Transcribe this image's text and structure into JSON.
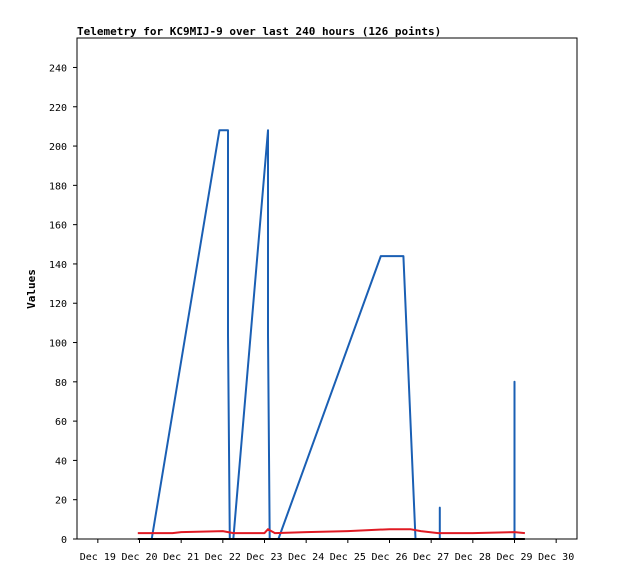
{
  "chart_data": {
    "type": "line",
    "title": "Telemetry for KC9MIJ-9 over last 240 hours (126 points)",
    "xlabel": "",
    "ylabel": "Values",
    "x_ticks": [
      "Dec 19",
      "Dec 20",
      "Dec 21",
      "Dec 22",
      "Dec 23",
      "Dec 24",
      "Dec 25",
      "Dec 26",
      "Dec 27",
      "Dec 28",
      "Dec 29",
      "Dec 30"
    ],
    "xlim": [
      "Dec 19",
      "Dec 30"
    ],
    "y_ticks": [
      0,
      20,
      40,
      60,
      80,
      100,
      120,
      140,
      160,
      180,
      200,
      220,
      240
    ],
    "ylim": [
      0,
      255
    ],
    "grid": false,
    "legend": "none",
    "series": [
      {
        "color": "#1a5fb4",
        "points": [
          [
            "Dec 20 07:00",
            0
          ],
          [
            "Dec 21 22:00",
            208
          ],
          [
            "Dec 22 03:00",
            208
          ],
          [
            "Dec 22 03:00",
            104
          ],
          [
            "Dec 22 04:00",
            0
          ],
          [
            "Dec 22 06:00",
            0
          ],
          [
            "Dec 23 02:00",
            208
          ],
          [
            "Dec 23 02:00",
            104
          ],
          [
            "Dec 23 03:00",
            0
          ],
          [
            "Dec 23 08:00",
            0
          ],
          [
            "Dec 25 19:00",
            144
          ],
          [
            "Dec 26 08:00",
            144
          ],
          [
            "Dec 26 15:00",
            0
          ],
          [
            "Dec 27 05:00",
            0
          ],
          [
            "Dec 27 05:00",
            16
          ],
          [
            "Dec 27 05:00",
            0
          ],
          [
            "Dec 29 00:00",
            0
          ],
          [
            "Dec 29 00:00",
            80
          ],
          [
            "Dec 29 00:00",
            0
          ]
        ]
      },
      {
        "color": "#e01b24",
        "points": [
          [
            "Dec 19 23:00",
            3
          ],
          [
            "Dec 20 19:00",
            3
          ],
          [
            "Dec 21 00:00",
            3.5
          ],
          [
            "Dec 22 00:00",
            4
          ],
          [
            "Dec 22 06:00",
            3
          ],
          [
            "Dec 23 00:00",
            3
          ],
          [
            "Dec 23 02:00",
            5
          ],
          [
            "Dec 23 06:00",
            3
          ],
          [
            "Dec 24 00:00",
            3.5
          ],
          [
            "Dec 25 00:00",
            4
          ],
          [
            "Dec 26 00:00",
            5
          ],
          [
            "Dec 26 12:00",
            5
          ],
          [
            "Dec 26 18:00",
            4
          ],
          [
            "Dec 27 04:00",
            3
          ],
          [
            "Dec 28 00:00",
            3
          ],
          [
            "Dec 29 00:00",
            3.5
          ],
          [
            "Dec 29 06:00",
            3
          ]
        ]
      },
      {
        "color": "#000000",
        "points": [
          [
            "Dec 19 23:00",
            0
          ],
          [
            "Dec 29 06:00",
            0
          ]
        ]
      }
    ]
  }
}
